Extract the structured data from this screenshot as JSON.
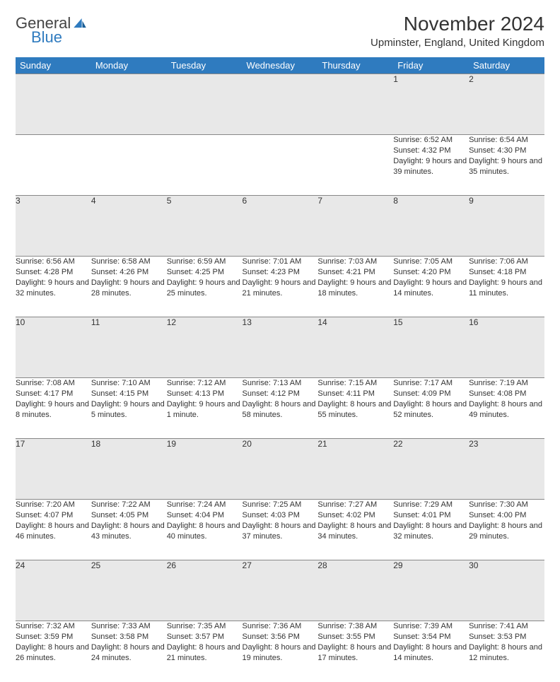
{
  "brand": {
    "word1": "General",
    "word2": "Blue",
    "icon_color": "#2f7bbf"
  },
  "title": "November 2024",
  "location": "Upminster, England, United Kingdom",
  "colors": {
    "header_bg": "#2f7bbf",
    "header_fg": "#ffffff",
    "daynum_bg": "#e8e8e8",
    "border": "#888888",
    "text": "#333333"
  },
  "day_headers": [
    "Sunday",
    "Monday",
    "Tuesday",
    "Wednesday",
    "Thursday",
    "Friday",
    "Saturday"
  ],
  "weeks": [
    [
      null,
      null,
      null,
      null,
      null,
      {
        "n": "1",
        "sunrise": "Sunrise: 6:52 AM",
        "sunset": "Sunset: 4:32 PM",
        "daylight": "Daylight: 9 hours and 39 minutes."
      },
      {
        "n": "2",
        "sunrise": "Sunrise: 6:54 AM",
        "sunset": "Sunset: 4:30 PM",
        "daylight": "Daylight: 9 hours and 35 minutes."
      }
    ],
    [
      {
        "n": "3",
        "sunrise": "Sunrise: 6:56 AM",
        "sunset": "Sunset: 4:28 PM",
        "daylight": "Daylight: 9 hours and 32 minutes."
      },
      {
        "n": "4",
        "sunrise": "Sunrise: 6:58 AM",
        "sunset": "Sunset: 4:26 PM",
        "daylight": "Daylight: 9 hours and 28 minutes."
      },
      {
        "n": "5",
        "sunrise": "Sunrise: 6:59 AM",
        "sunset": "Sunset: 4:25 PM",
        "daylight": "Daylight: 9 hours and 25 minutes."
      },
      {
        "n": "6",
        "sunrise": "Sunrise: 7:01 AM",
        "sunset": "Sunset: 4:23 PM",
        "daylight": "Daylight: 9 hours and 21 minutes."
      },
      {
        "n": "7",
        "sunrise": "Sunrise: 7:03 AM",
        "sunset": "Sunset: 4:21 PM",
        "daylight": "Daylight: 9 hours and 18 minutes."
      },
      {
        "n": "8",
        "sunrise": "Sunrise: 7:05 AM",
        "sunset": "Sunset: 4:20 PM",
        "daylight": "Daylight: 9 hours and 14 minutes."
      },
      {
        "n": "9",
        "sunrise": "Sunrise: 7:06 AM",
        "sunset": "Sunset: 4:18 PM",
        "daylight": "Daylight: 9 hours and 11 minutes."
      }
    ],
    [
      {
        "n": "10",
        "sunrise": "Sunrise: 7:08 AM",
        "sunset": "Sunset: 4:17 PM",
        "daylight": "Daylight: 9 hours and 8 minutes."
      },
      {
        "n": "11",
        "sunrise": "Sunrise: 7:10 AM",
        "sunset": "Sunset: 4:15 PM",
        "daylight": "Daylight: 9 hours and 5 minutes."
      },
      {
        "n": "12",
        "sunrise": "Sunrise: 7:12 AM",
        "sunset": "Sunset: 4:13 PM",
        "daylight": "Daylight: 9 hours and 1 minute."
      },
      {
        "n": "13",
        "sunrise": "Sunrise: 7:13 AM",
        "sunset": "Sunset: 4:12 PM",
        "daylight": "Daylight: 8 hours and 58 minutes."
      },
      {
        "n": "14",
        "sunrise": "Sunrise: 7:15 AM",
        "sunset": "Sunset: 4:11 PM",
        "daylight": "Daylight: 8 hours and 55 minutes."
      },
      {
        "n": "15",
        "sunrise": "Sunrise: 7:17 AM",
        "sunset": "Sunset: 4:09 PM",
        "daylight": "Daylight: 8 hours and 52 minutes."
      },
      {
        "n": "16",
        "sunrise": "Sunrise: 7:19 AM",
        "sunset": "Sunset: 4:08 PM",
        "daylight": "Daylight: 8 hours and 49 minutes."
      }
    ],
    [
      {
        "n": "17",
        "sunrise": "Sunrise: 7:20 AM",
        "sunset": "Sunset: 4:07 PM",
        "daylight": "Daylight: 8 hours and 46 minutes."
      },
      {
        "n": "18",
        "sunrise": "Sunrise: 7:22 AM",
        "sunset": "Sunset: 4:05 PM",
        "daylight": "Daylight: 8 hours and 43 minutes."
      },
      {
        "n": "19",
        "sunrise": "Sunrise: 7:24 AM",
        "sunset": "Sunset: 4:04 PM",
        "daylight": "Daylight: 8 hours and 40 minutes."
      },
      {
        "n": "20",
        "sunrise": "Sunrise: 7:25 AM",
        "sunset": "Sunset: 4:03 PM",
        "daylight": "Daylight: 8 hours and 37 minutes."
      },
      {
        "n": "21",
        "sunrise": "Sunrise: 7:27 AM",
        "sunset": "Sunset: 4:02 PM",
        "daylight": "Daylight: 8 hours and 34 minutes."
      },
      {
        "n": "22",
        "sunrise": "Sunrise: 7:29 AM",
        "sunset": "Sunset: 4:01 PM",
        "daylight": "Daylight: 8 hours and 32 minutes."
      },
      {
        "n": "23",
        "sunrise": "Sunrise: 7:30 AM",
        "sunset": "Sunset: 4:00 PM",
        "daylight": "Daylight: 8 hours and 29 minutes."
      }
    ],
    [
      {
        "n": "24",
        "sunrise": "Sunrise: 7:32 AM",
        "sunset": "Sunset: 3:59 PM",
        "daylight": "Daylight: 8 hours and 26 minutes."
      },
      {
        "n": "25",
        "sunrise": "Sunrise: 7:33 AM",
        "sunset": "Sunset: 3:58 PM",
        "daylight": "Daylight: 8 hours and 24 minutes."
      },
      {
        "n": "26",
        "sunrise": "Sunrise: 7:35 AM",
        "sunset": "Sunset: 3:57 PM",
        "daylight": "Daylight: 8 hours and 21 minutes."
      },
      {
        "n": "27",
        "sunrise": "Sunrise: 7:36 AM",
        "sunset": "Sunset: 3:56 PM",
        "daylight": "Daylight: 8 hours and 19 minutes."
      },
      {
        "n": "28",
        "sunrise": "Sunrise: 7:38 AM",
        "sunset": "Sunset: 3:55 PM",
        "daylight": "Daylight: 8 hours and 17 minutes."
      },
      {
        "n": "29",
        "sunrise": "Sunrise: 7:39 AM",
        "sunset": "Sunset: 3:54 PM",
        "daylight": "Daylight: 8 hours and 14 minutes."
      },
      {
        "n": "30",
        "sunrise": "Sunrise: 7:41 AM",
        "sunset": "Sunset: 3:53 PM",
        "daylight": "Daylight: 8 hours and 12 minutes."
      }
    ]
  ]
}
